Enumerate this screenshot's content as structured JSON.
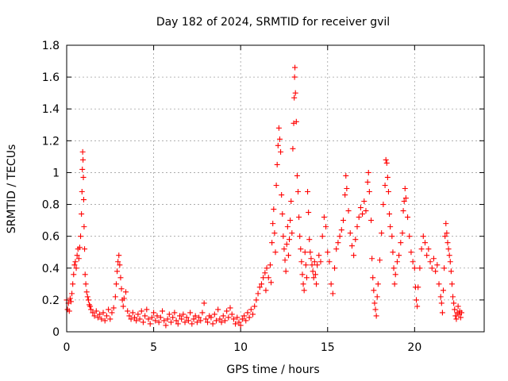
{
  "chart_data": {
    "type": "scatter",
    "title": "Day 182 of 2024, SRMTID for receiver gvil",
    "xlabel": "GPS time / hours",
    "ylabel": "SRMTID / TECUs",
    "xlim": [
      0,
      24
    ],
    "ylim": [
      0,
      1.8
    ],
    "xticks": [
      0,
      5,
      10,
      15,
      20
    ],
    "xtick_labels": [
      "0",
      "5",
      "10",
      "15",
      "20"
    ],
    "yticks": [
      0,
      0.2,
      0.4,
      0.6,
      0.8,
      1,
      1.2,
      1.4,
      1.6,
      1.8
    ],
    "ytick_labels": [
      "0",
      "0.2",
      "0.4",
      "0.6",
      "0.8",
      "1",
      "1.2",
      "1.4",
      "1.6",
      "1.8"
    ],
    "grid": true,
    "marker": "+",
    "color": "#ff0000",
    "series": [
      {
        "name": "SRMTID",
        "points": [
          [
            0.0,
            0.2
          ],
          [
            0.05,
            0.14
          ],
          [
            0.1,
            0.18
          ],
          [
            0.15,
            0.13
          ],
          [
            0.2,
            0.21
          ],
          [
            0.25,
            0.19
          ],
          [
            0.3,
            0.24
          ],
          [
            0.35,
            0.3
          ],
          [
            0.4,
            0.36
          ],
          [
            0.45,
            0.42
          ],
          [
            0.5,
            0.44
          ],
          [
            0.55,
            0.4
          ],
          [
            0.6,
            0.48
          ],
          [
            0.65,
            0.52
          ],
          [
            0.7,
            0.46
          ],
          [
            0.75,
            0.53
          ],
          [
            0.8,
            0.6
          ],
          [
            0.85,
            0.74
          ],
          [
            0.88,
            0.88
          ],
          [
            0.9,
            1.02
          ],
          [
            0.92,
            1.13
          ],
          [
            0.94,
            1.08
          ],
          [
            0.96,
            0.97
          ],
          [
            0.98,
            0.83
          ],
          [
            1.0,
            0.66
          ],
          [
            1.03,
            0.52
          ],
          [
            1.06,
            0.36
          ],
          [
            1.1,
            0.3
          ],
          [
            1.15,
            0.25
          ],
          [
            1.2,
            0.22
          ],
          [
            1.25,
            0.2
          ],
          [
            1.3,
            0.17
          ],
          [
            1.35,
            0.16
          ],
          [
            1.4,
            0.14
          ],
          [
            1.5,
            0.12
          ],
          [
            1.6,
            0.1
          ],
          [
            1.7,
            0.13
          ],
          [
            1.8,
            0.09
          ],
          [
            1.9,
            0.11
          ],
          [
            2.0,
            0.08
          ],
          [
            2.1,
            0.12
          ],
          [
            2.2,
            0.07
          ],
          [
            2.3,
            0.1
          ],
          [
            2.4,
            0.14
          ],
          [
            2.5,
            0.08
          ],
          [
            2.6,
            0.12
          ],
          [
            2.7,
            0.15
          ],
          [
            2.8,
            0.22
          ],
          [
            2.85,
            0.3
          ],
          [
            2.9,
            0.38
          ],
          [
            2.95,
            0.44
          ],
          [
            3.0,
            0.48
          ],
          [
            3.05,
            0.42
          ],
          [
            3.1,
            0.34
          ],
          [
            3.15,
            0.27
          ],
          [
            3.2,
            0.2
          ],
          [
            3.25,
            0.16
          ],
          [
            3.3,
            0.21
          ],
          [
            3.4,
            0.25
          ],
          [
            3.5,
            0.13
          ],
          [
            3.6,
            0.1
          ],
          [
            3.7,
            0.08
          ],
          [
            3.8,
            0.12
          ],
          [
            3.9,
            0.09
          ],
          [
            4.0,
            0.07
          ],
          [
            4.1,
            0.11
          ],
          [
            4.2,
            0.08
          ],
          [
            4.3,
            0.13
          ],
          [
            4.4,
            0.06
          ],
          [
            4.5,
            0.1
          ],
          [
            4.6,
            0.14
          ],
          [
            4.7,
            0.08
          ],
          [
            4.8,
            0.05
          ],
          [
            4.9,
            0.09
          ],
          [
            5.0,
            0.12
          ],
          [
            5.1,
            0.07
          ],
          [
            5.2,
            0.1
          ],
          [
            5.3,
            0.06
          ],
          [
            5.4,
            0.09
          ],
          [
            5.5,
            0.13
          ],
          [
            5.6,
            0.07
          ],
          [
            5.7,
            0.04
          ],
          [
            5.8,
            0.08
          ],
          [
            5.9,
            0.11
          ],
          [
            6.0,
            0.06
          ],
          [
            6.1,
            0.09
          ],
          [
            6.2,
            0.12
          ],
          [
            6.3,
            0.07
          ],
          [
            6.4,
            0.05
          ],
          [
            6.5,
            0.1
          ],
          [
            6.6,
            0.08
          ],
          [
            6.7,
            0.11
          ],
          [
            6.8,
            0.06
          ],
          [
            6.9,
            0.09
          ],
          [
            7.0,
            0.07
          ],
          [
            7.1,
            0.12
          ],
          [
            7.2,
            0.05
          ],
          [
            7.3,
            0.08
          ],
          [
            7.4,
            0.1
          ],
          [
            7.5,
            0.06
          ],
          [
            7.6,
            0.09
          ],
          [
            7.7,
            0.07
          ],
          [
            7.8,
            0.12
          ],
          [
            7.9,
            0.18
          ],
          [
            8.0,
            0.08
          ],
          [
            8.1,
            0.06
          ],
          [
            8.2,
            0.1
          ],
          [
            8.3,
            0.09
          ],
          [
            8.4,
            0.05
          ],
          [
            8.5,
            0.11
          ],
          [
            8.6,
            0.07
          ],
          [
            8.7,
            0.14
          ],
          [
            8.8,
            0.08
          ],
          [
            8.9,
            0.06
          ],
          [
            9.0,
            0.1
          ],
          [
            9.1,
            0.07
          ],
          [
            9.2,
            0.13
          ],
          [
            9.3,
            0.09
          ],
          [
            9.4,
            0.15
          ],
          [
            9.5,
            0.11
          ],
          [
            9.6,
            0.08
          ],
          [
            9.7,
            0.05
          ],
          [
            9.8,
            0.09
          ],
          [
            9.9,
            0.06
          ],
          [
            10.0,
            0.04
          ],
          [
            10.1,
            0.08
          ],
          [
            10.2,
            0.1
          ],
          [
            10.3,
            0.07
          ],
          [
            10.4,
            0.12
          ],
          [
            10.5,
            0.09
          ],
          [
            10.6,
            0.14
          ],
          [
            10.7,
            0.11
          ],
          [
            10.8,
            0.16
          ],
          [
            10.9,
            0.2
          ],
          [
            11.0,
            0.24
          ],
          [
            11.1,
            0.28
          ],
          [
            11.2,
            0.3
          ],
          [
            11.3,
            0.34
          ],
          [
            11.4,
            0.37
          ],
          [
            11.45,
            0.26
          ],
          [
            11.5,
            0.4
          ],
          [
            11.6,
            0.34
          ],
          [
            11.7,
            0.42
          ],
          [
            11.75,
            0.31
          ],
          [
            11.8,
            0.56
          ],
          [
            11.85,
            0.68
          ],
          [
            11.9,
            0.77
          ],
          [
            11.95,
            0.62
          ],
          [
            12.0,
            0.5
          ],
          [
            12.05,
            0.92
          ],
          [
            12.1,
            1.05
          ],
          [
            12.15,
            1.17
          ],
          [
            12.2,
            1.28
          ],
          [
            12.25,
            1.21
          ],
          [
            12.3,
            1.13
          ],
          [
            12.35,
            0.86
          ],
          [
            12.4,
            0.74
          ],
          [
            12.45,
            0.6
          ],
          [
            12.5,
            0.52
          ],
          [
            12.55,
            0.45
          ],
          [
            12.6,
            0.38
          ],
          [
            12.65,
            0.55
          ],
          [
            12.7,
            0.66
          ],
          [
            12.75,
            0.48
          ],
          [
            12.8,
            0.58
          ],
          [
            12.85,
            0.7
          ],
          [
            12.9,
            0.82
          ],
          [
            12.95,
            0.62
          ],
          [
            13.0,
            1.15
          ],
          [
            13.05,
            1.31
          ],
          [
            13.08,
            1.47
          ],
          [
            13.1,
            1.6
          ],
          [
            13.12,
            1.66
          ],
          [
            13.15,
            1.5
          ],
          [
            13.2,
            1.32
          ],
          [
            13.25,
            0.98
          ],
          [
            13.3,
            0.88
          ],
          [
            13.35,
            0.72
          ],
          [
            13.4,
            0.6
          ],
          [
            13.45,
            0.52
          ],
          [
            13.5,
            0.44
          ],
          [
            13.55,
            0.36
          ],
          [
            13.6,
            0.3
          ],
          [
            13.65,
            0.26
          ],
          [
            13.7,
            0.5
          ],
          [
            13.75,
            0.42
          ],
          [
            13.8,
            0.34
          ],
          [
            13.85,
            0.88
          ],
          [
            13.9,
            0.75
          ],
          [
            13.95,
            0.58
          ],
          [
            14.0,
            0.5
          ],
          [
            14.05,
            0.46
          ],
          [
            14.1,
            0.42
          ],
          [
            14.15,
            0.38
          ],
          [
            14.2,
            0.34
          ],
          [
            14.25,
            0.44
          ],
          [
            14.3,
            0.36
          ],
          [
            14.35,
            0.3
          ],
          [
            14.4,
            0.42
          ],
          [
            14.5,
            0.48
          ],
          [
            14.6,
            0.44
          ],
          [
            14.7,
            0.6
          ],
          [
            14.8,
            0.72
          ],
          [
            14.9,
            0.66
          ],
          [
            15.0,
            0.5
          ],
          [
            15.1,
            0.44
          ],
          [
            15.2,
            0.3
          ],
          [
            15.3,
            0.24
          ],
          [
            15.4,
            0.4
          ],
          [
            15.5,
            0.52
          ],
          [
            15.6,
            0.56
          ],
          [
            15.7,
            0.6
          ],
          [
            15.8,
            0.64
          ],
          [
            15.9,
            0.7
          ],
          [
            16.0,
            0.86
          ],
          [
            16.05,
            0.98
          ],
          [
            16.1,
            0.9
          ],
          [
            16.2,
            0.76
          ],
          [
            16.3,
            0.62
          ],
          [
            16.4,
            0.54
          ],
          [
            16.5,
            0.48
          ],
          [
            16.6,
            0.58
          ],
          [
            16.7,
            0.66
          ],
          [
            16.8,
            0.72
          ],
          [
            16.9,
            0.78
          ],
          [
            17.0,
            0.74
          ],
          [
            17.1,
            0.82
          ],
          [
            17.2,
            0.76
          ],
          [
            17.3,
            0.94
          ],
          [
            17.35,
            1.0
          ],
          [
            17.4,
            0.88
          ],
          [
            17.5,
            0.7
          ],
          [
            17.55,
            0.46
          ],
          [
            17.6,
            0.34
          ],
          [
            17.65,
            0.26
          ],
          [
            17.7,
            0.18
          ],
          [
            17.75,
            0.14
          ],
          [
            17.8,
            0.1
          ],
          [
            17.85,
            0.22
          ],
          [
            17.9,
            0.3
          ],
          [
            18.0,
            0.45
          ],
          [
            18.1,
            0.62
          ],
          [
            18.2,
            0.8
          ],
          [
            18.3,
            0.92
          ],
          [
            18.35,
            1.08
          ],
          [
            18.4,
            1.06
          ],
          [
            18.45,
            0.97
          ],
          [
            18.5,
            0.88
          ],
          [
            18.55,
            0.74
          ],
          [
            18.6,
            0.66
          ],
          [
            18.7,
            0.6
          ],
          [
            18.75,
            0.5
          ],
          [
            18.8,
            0.4
          ],
          [
            18.85,
            0.3
          ],
          [
            18.9,
            0.36
          ],
          [
            19.0,
            0.44
          ],
          [
            19.1,
            0.48
          ],
          [
            19.2,
            0.56
          ],
          [
            19.3,
            0.62
          ],
          [
            19.35,
            0.76
          ],
          [
            19.4,
            0.82
          ],
          [
            19.45,
            0.9
          ],
          [
            19.5,
            0.84
          ],
          [
            19.6,
            0.72
          ],
          [
            19.7,
            0.6
          ],
          [
            19.8,
            0.5
          ],
          [
            19.9,
            0.44
          ],
          [
            20.0,
            0.4
          ],
          [
            20.05,
            0.28
          ],
          [
            20.1,
            0.2
          ],
          [
            20.15,
            0.16
          ],
          [
            20.2,
            0.28
          ],
          [
            20.3,
            0.4
          ],
          [
            20.4,
            0.52
          ],
          [
            20.5,
            0.6
          ],
          [
            20.6,
            0.56
          ],
          [
            20.7,
            0.48
          ],
          [
            20.8,
            0.52
          ],
          [
            20.9,
            0.44
          ],
          [
            21.0,
            0.4
          ],
          [
            21.1,
            0.46
          ],
          [
            21.2,
            0.38
          ],
          [
            21.3,
            0.42
          ],
          [
            21.4,
            0.3
          ],
          [
            21.5,
            0.22
          ],
          [
            21.55,
            0.18
          ],
          [
            21.6,
            0.12
          ],
          [
            21.65,
            0.26
          ],
          [
            21.7,
            0.4
          ],
          [
            21.75,
            0.6
          ],
          [
            21.8,
            0.68
          ],
          [
            21.85,
            0.62
          ],
          [
            21.9,
            0.56
          ],
          [
            21.95,
            0.52
          ],
          [
            22.0,
            0.48
          ],
          [
            22.05,
            0.44
          ],
          [
            22.1,
            0.38
          ],
          [
            22.15,
            0.3
          ],
          [
            22.2,
            0.22
          ],
          [
            22.25,
            0.18
          ],
          [
            22.3,
            0.14
          ],
          [
            22.35,
            0.1
          ],
          [
            22.4,
            0.08
          ],
          [
            22.45,
            0.12
          ],
          [
            22.5,
            0.16
          ],
          [
            22.55,
            0.11
          ],
          [
            22.6,
            0.13
          ],
          [
            22.65,
            0.09
          ],
          [
            22.7,
            0.12
          ]
        ]
      }
    ]
  }
}
